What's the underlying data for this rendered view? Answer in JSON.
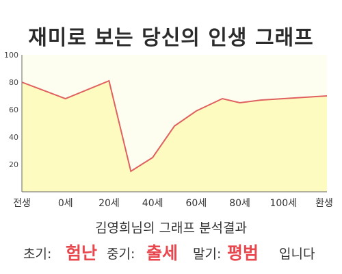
{
  "title": "재미로 보는 당신의 인생 그래프",
  "result_title": "김영희님의 그래프 분석결과",
  "summary": {
    "early_label": "초기:",
    "early_value": "험난",
    "mid_label": "중기:",
    "mid_value": "출세",
    "late_label": "말기:",
    "late_value": "평범",
    "ending": "입니다"
  },
  "colors": {
    "accent": "#e8474d",
    "line": "#e06060",
    "fill": "#fdfbbf",
    "plot_bg": "#fefef0"
  },
  "chart_data": {
    "type": "area",
    "categories": [
      "전생",
      "0세",
      "20세",
      "40세",
      "60세",
      "80세",
      "100세",
      "환생"
    ],
    "x": [
      -20,
      0,
      20,
      40,
      60,
      80,
      100,
      120
    ],
    "x_tick_labels": [
      "전생",
      "0세",
      "20세",
      "40세",
      "60세",
      "80세",
      "100세",
      "환생"
    ],
    "series": [
      {
        "x": [
          -20,
          0,
          20,
          30,
          40,
          50,
          60,
          72,
          80,
          90,
          100,
          110,
          120
        ],
        "values": [
          80,
          68,
          81,
          15,
          25,
          48,
          59,
          68,
          65,
          67,
          68,
          69,
          70
        ]
      }
    ],
    "ylim": [
      0,
      100
    ],
    "y_ticks": [
      20,
      40,
      60,
      80,
      100
    ],
    "grid": false,
    "legend": "none"
  }
}
